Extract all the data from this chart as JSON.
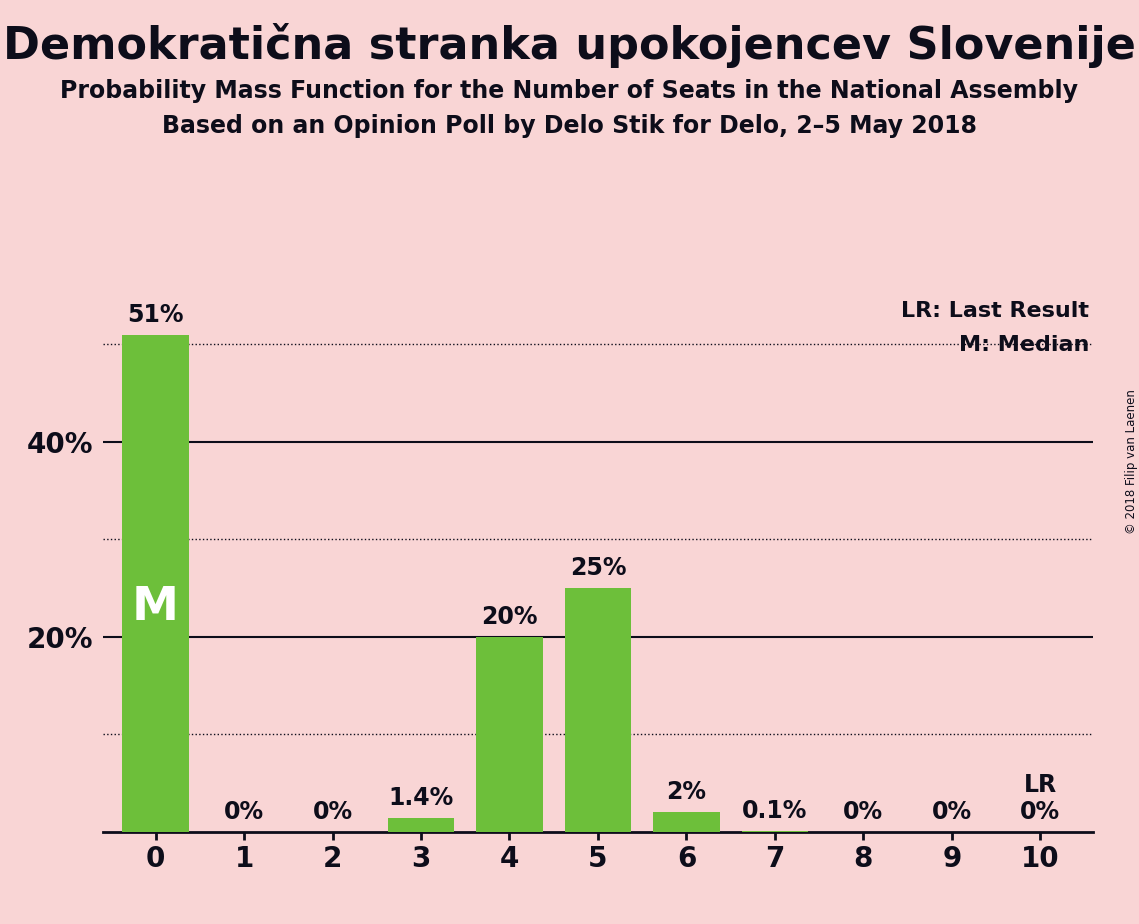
{
  "title": "Demokratična stranka upokojencev Slovenije",
  "subtitle1": "Probability Mass Function for the Number of Seats in the National Assembly",
  "subtitle2": "Based on an Opinion Poll by Delo Stik for Delo, 2–5 May 2018",
  "copyright": "© 2018 Filip van Laenen",
  "background_color": "#f9d5d5",
  "bar_color": "#6dbf3a",
  "text_color": "#0d0d1a",
  "categories": [
    0,
    1,
    2,
    3,
    4,
    5,
    6,
    7,
    8,
    9,
    10
  ],
  "values": [
    51.0,
    0.0,
    0.0,
    1.4,
    20.0,
    25.0,
    2.0,
    0.1,
    0.0,
    0.0,
    0.0
  ],
  "bar_labels": [
    "51%",
    "0%",
    "0%",
    "1.4%",
    "20%",
    "25%",
    "2%",
    "0.1%",
    "0%",
    "0%",
    "0%"
  ],
  "median_bar": 0,
  "lr_bar": 10,
  "ylim": [
    0,
    55
  ],
  "yticks": [
    20,
    40
  ],
  "ytick_labels": [
    "20%",
    "40%"
  ],
  "dotted_lines": [
    10,
    30,
    50
  ],
  "solid_lines": [
    20,
    40
  ],
  "lr_label": "LR",
  "lr_legend": "LR: Last Result",
  "m_legend": "M: Median",
  "title_fontsize": 32,
  "subtitle_fontsize": 17,
  "bar_label_fontsize": 17,
  "tick_fontsize": 20,
  "legend_fontsize": 16
}
